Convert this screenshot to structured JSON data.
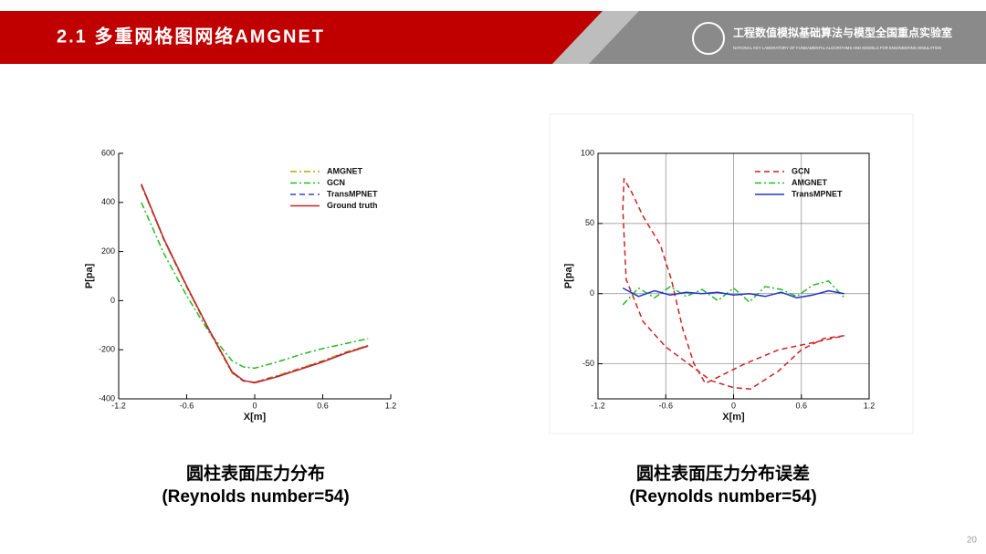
{
  "header": {
    "title": "2.1 多重网格图网络AMGNET",
    "lab_name": "工程数值模拟基础算法与模型全国重点实验室",
    "lab_name_en": "NATIONAL KEY LABORATORY OF FUNDAMENTAL ALGORITHMS AND MODELS FOR ENGINEERING SIMULATION"
  },
  "captions": [
    {
      "line1": "圆柱表面压力分布",
      "line2": "(Reynolds number=54)"
    },
    {
      "line1": "圆柱表面压力分布误差",
      "line2": "(Reynolds number=54)"
    }
  ],
  "page_number": "20",
  "chart_data": [
    {
      "type": "line",
      "x_label": "X[m]",
      "y_label": "P[pa]",
      "xlim": [
        -1.2,
        1.2
      ],
      "xticks": [
        -1.2,
        -0.6,
        0,
        0.6,
        1.2
      ],
      "ylim": [
        -400,
        600
      ],
      "yticks": [
        -400,
        -200,
        0,
        200,
        400,
        600
      ],
      "grid": false,
      "legend": "upper right",
      "series": [
        {
          "name": "AMGNET",
          "color": "#c8a000",
          "dash": "dashdot",
          "x": [
            -1.0,
            -0.8,
            -0.6,
            -0.4,
            -0.2,
            -0.1,
            0,
            0.2,
            0.4,
            0.6,
            0.8,
            1.0
          ],
          "values": [
            470,
            245,
            55,
            -125,
            -295,
            -328,
            -332,
            -305,
            -275,
            -245,
            -210,
            -182
          ]
        },
        {
          "name": "GCN",
          "color": "#22bb22",
          "dash": "dashdot",
          "x": [
            -1.0,
            -0.8,
            -0.6,
            -0.4,
            -0.2,
            -0.1,
            0,
            0.2,
            0.4,
            0.6,
            0.8,
            1.0
          ],
          "values": [
            400,
            190,
            20,
            -130,
            -245,
            -270,
            -275,
            -250,
            -220,
            -195,
            -175,
            -155
          ]
        },
        {
          "name": "TransMPNET",
          "color": "#3344cc",
          "dash": "dash",
          "x": [
            -1.0,
            -0.8,
            -0.6,
            -0.4,
            -0.2,
            -0.1,
            0,
            0.2,
            0.4,
            0.6,
            0.8,
            1.0
          ],
          "values": [
            472,
            248,
            58,
            -122,
            -292,
            -327,
            -333,
            -308,
            -278,
            -248,
            -213,
            -184
          ]
        },
        {
          "name": "Ground truth",
          "color": "#cc2222",
          "dash": "solid",
          "x": [
            -1.0,
            -0.8,
            -0.6,
            -0.4,
            -0.2,
            -0.1,
            0,
            0.2,
            0.4,
            0.6,
            0.8,
            1.0
          ],
          "values": [
            475,
            250,
            60,
            -120,
            -290,
            -325,
            -335,
            -310,
            -280,
            -250,
            -215,
            -185
          ]
        }
      ]
    },
    {
      "type": "line",
      "x_label": "X[m]",
      "y_label": "P[pa]",
      "xlim": [
        -1.2,
        1.2
      ],
      "xticks": [
        -1.2,
        -0.6,
        0,
        0.6,
        1.2
      ],
      "ylim": [
        -75,
        100
      ],
      "yticks": [
        -50,
        0,
        50,
        100
      ],
      "grid": true,
      "legend": "upper right",
      "series": [
        {
          "name": "GCN",
          "color": "#cc2222",
          "dash": "dash",
          "x": [
            0.98,
            0.8,
            0.6,
            0.4,
            0.15,
            0,
            -0.2,
            -0.4,
            -0.6,
            -0.8,
            -0.95,
            -0.98,
            -0.97,
            -0.9,
            -0.8,
            -0.65,
            -0.55,
            -0.45,
            -0.35,
            -0.25,
            -0.1,
            0.1,
            0.4,
            0.7,
            0.98
          ],
          "values": [
            -30,
            -32,
            -40,
            -55,
            -68,
            -67,
            -62,
            -50,
            -38,
            -20,
            10,
            60,
            82,
            72,
            55,
            35,
            10,
            -25,
            -50,
            -64,
            -58,
            -50,
            -40,
            -35,
            -30
          ]
        },
        {
          "name": "AMGNET",
          "color": "#22bb22",
          "dash": "dashdot",
          "x": [
            -0.98,
            -0.84,
            -0.7,
            -0.56,
            -0.42,
            -0.28,
            -0.14,
            0,
            0.14,
            0.28,
            0.42,
            0.56,
            0.7,
            0.84,
            0.98
          ],
          "values": [
            -8,
            4,
            -3,
            5,
            -2,
            3,
            -5,
            4,
            -6,
            5,
            3,
            -2,
            6,
            9,
            -3
          ]
        },
        {
          "name": "TransMPNET",
          "color": "#2233cc",
          "dash": "solid",
          "x": [
            -0.98,
            -0.84,
            -0.7,
            -0.56,
            -0.42,
            -0.28,
            -0.14,
            0,
            0.14,
            0.28,
            0.42,
            0.56,
            0.7,
            0.84,
            0.98
          ],
          "values": [
            4,
            -2,
            2,
            -1,
            1,
            0,
            1,
            -1,
            0,
            -2,
            1,
            -3,
            -1,
            2,
            0
          ]
        }
      ]
    }
  ]
}
